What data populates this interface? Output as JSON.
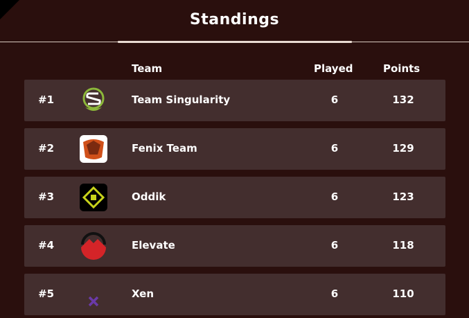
{
  "title": "Standings",
  "headers": {
    "team": "Team",
    "played": "Played",
    "points": "Points"
  },
  "rows": [
    {
      "rank": "#1",
      "team": "Team Singularity",
      "played": "6",
      "points": "132",
      "logo": "singularity-logo"
    },
    {
      "rank": "#2",
      "team": "Fenix Team",
      "played": "6",
      "points": "129",
      "logo": "fenix-logo"
    },
    {
      "rank": "#3",
      "team": "Oddik",
      "played": "6",
      "points": "123",
      "logo": "oddik-logo"
    },
    {
      "rank": "#4",
      "team": "Elevate",
      "played": "6",
      "points": "118",
      "logo": "elevate-logo"
    },
    {
      "rank": "#5",
      "team": "Xen",
      "played": "6",
      "points": "110",
      "logo": "xen-logo"
    }
  ]
}
